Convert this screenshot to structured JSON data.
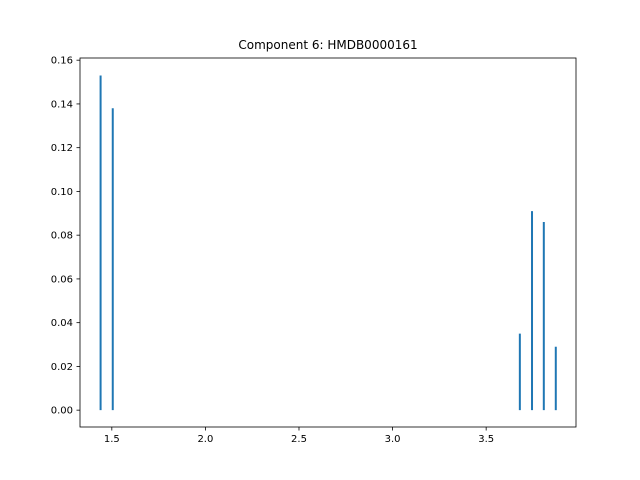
{
  "chart_data": {
    "type": "bar",
    "title": "Component 6: HMDB0000161",
    "xlabel": "",
    "ylabel": "",
    "xlim": [
      1.33,
      3.98
    ],
    "ylim": [
      -0.0077,
      0.161
    ],
    "xticks": [
      1.5,
      2.0,
      2.5,
      3.0,
      3.5
    ],
    "xtick_labels": [
      "1.5",
      "2.0",
      "2.5",
      "3.0",
      "3.5"
    ],
    "yticks": [
      0.0,
      0.02,
      0.04,
      0.06,
      0.08,
      0.1,
      0.12,
      0.14,
      0.16
    ],
    "ytick_labels": [
      "0.00",
      "0.02",
      "0.04",
      "0.06",
      "0.08",
      "0.10",
      "0.12",
      "0.14",
      "0.16"
    ],
    "grid": false,
    "series": [
      {
        "color": "#1f77b4",
        "x": [
          1.44,
          1.505,
          3.68,
          3.745,
          3.808,
          3.872
        ],
        "values": [
          0.153,
          0.138,
          0.035,
          0.091,
          0.086,
          0.029
        ]
      }
    ]
  }
}
